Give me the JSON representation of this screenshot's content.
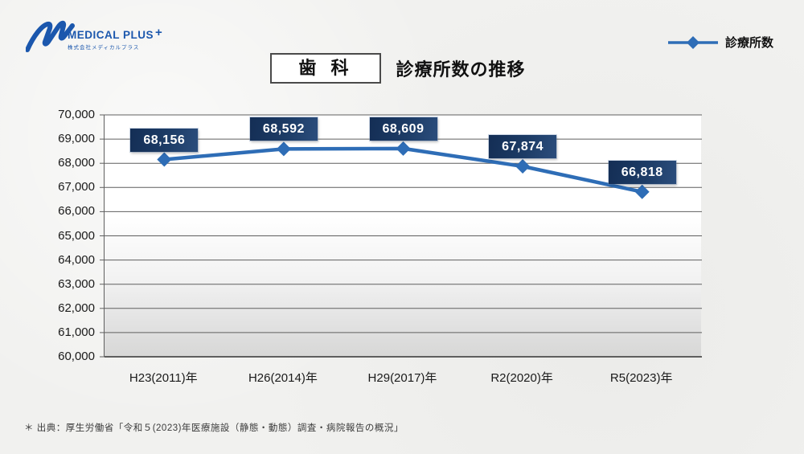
{
  "logo": {
    "name": "MEDICAL PLUS",
    "plus": "+",
    "subtitle": "株式会社メディカルプラス",
    "color": "#1b57ad"
  },
  "legend": {
    "label": "診療所数",
    "line_color": "#2e6db6"
  },
  "title": {
    "category": "歯 科",
    "text": "診療所数の推移"
  },
  "chart_data": {
    "type": "line",
    "title": "歯科 診療所数の推移",
    "categories": [
      "H23(2011)年",
      "H26(2014)年",
      "H29(2017)年",
      "R2(2020)年",
      "R5(2023)年"
    ],
    "series": [
      {
        "name": "診療所数",
        "values": [
          68156,
          68592,
          68609,
          67874,
          66818
        ],
        "color": "#2e6db6",
        "marker": "diamond"
      }
    ],
    "data_labels": [
      "68,156",
      "68,592",
      "68,609",
      "67,874",
      "66,818"
    ],
    "ylim": [
      60000,
      70000
    ],
    "ytick_step": 1000,
    "grid": true,
    "gridline_color": "#5f5f5f",
    "axis_color": "#333333",
    "label_box_color": "#1d3c66",
    "legend_position": "top-right"
  },
  "footer": {
    "source": "＊ 出典：厚生労働省「令和５(2023)年医療施設（静態・動態）調査・病院報告の概況」"
  }
}
